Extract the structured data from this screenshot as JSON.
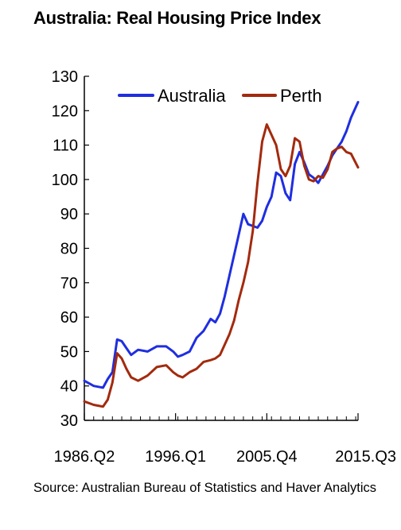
{
  "title": "Australia: Real Housing Price Index",
  "source": "Source: Australian Bureau of Statistics and Haver Analytics",
  "colors": {
    "australia": "#1f2ee0",
    "perth": "#a32a0e",
    "axis": "#000000"
  },
  "chart_data": {
    "type": "line",
    "title": "Australia: Real Housing Price Index",
    "xlabel": "",
    "ylabel": "",
    "ylim": [
      30,
      130
    ],
    "yticks": [
      30,
      40,
      50,
      60,
      70,
      80,
      90,
      100,
      110,
      120,
      130
    ],
    "xticks": [
      "1986.Q2",
      "1996.Q1",
      "2005.Q4",
      "2015.Q3"
    ],
    "xlim": [
      "1986.Q2",
      "2015.Q3"
    ],
    "grid": false,
    "legend": "top-left",
    "series": [
      {
        "name": "Australia",
        "color": "#1f2ee0",
        "x": [
          "1986.Q2",
          "1987.Q2",
          "1988.Q2",
          "1988.Q4",
          "1989.Q2",
          "1989.Q4",
          "1990.Q2",
          "1990.Q4",
          "1991.Q2",
          "1992.Q1",
          "1993.Q1",
          "1994.Q1",
          "1995.Q1",
          "1995.Q4",
          "1996.Q2",
          "1996.Q4",
          "1997.Q3",
          "1998.Q2",
          "1999.Q1",
          "1999.Q4",
          "2000.Q2",
          "2000.Q4",
          "2001.Q2",
          "2001.Q4",
          "2002.Q2",
          "2002.Q4",
          "2003.Q2",
          "2003.Q4",
          "2004.Q2",
          "2004.Q4",
          "2005.Q2",
          "2005.Q4",
          "2006.Q2",
          "2006.Q4",
          "2007.Q2",
          "2007.Q4",
          "2008.Q2",
          "2008.Q4",
          "2009.Q2",
          "2009.Q4",
          "2010.Q2",
          "2010.Q4",
          "2011.Q2",
          "2011.Q4",
          "2012.Q2",
          "2012.Q4",
          "2013.Q2",
          "2013.Q4",
          "2014.Q2",
          "2014.Q4",
          "2015.Q3"
        ],
        "values": [
          41.5,
          40,
          39.5,
          42,
          44,
          53.5,
          53,
          51,
          49,
          50.5,
          50,
          51.5,
          51.5,
          50,
          48.5,
          49,
          50,
          54,
          56,
          59.5,
          58.5,
          61,
          66,
          72,
          78,
          84,
          90,
          87,
          86.5,
          86,
          88,
          92,
          95,
          102,
          101,
          96,
          94,
          104.5,
          108,
          105,
          101.5,
          100.5,
          99,
          101.5,
          104,
          107,
          109,
          111,
          114,
          118,
          122.5
        ]
      },
      {
        "name": "Perth",
        "color": "#a32a0e",
        "x": [
          "1986.Q2",
          "1987.Q2",
          "1988.Q2",
          "1988.Q4",
          "1989.Q2",
          "1989.Q4",
          "1990.Q2",
          "1990.Q4",
          "1991.Q2",
          "1992.Q1",
          "1993.Q1",
          "1994.Q1",
          "1995.Q1",
          "1995.Q4",
          "1996.Q2",
          "1996.Q4",
          "1997.Q3",
          "1998.Q2",
          "1999.Q1",
          "1999.Q4",
          "2000.Q2",
          "2000.Q4",
          "2001.Q2",
          "2001.Q4",
          "2002.Q2",
          "2002.Q4",
          "2003.Q2",
          "2003.Q4",
          "2004.Q2",
          "2004.Q4",
          "2005.Q2",
          "2005.Q4",
          "2006.Q2",
          "2006.Q4",
          "2007.Q2",
          "2007.Q4",
          "2008.Q2",
          "2008.Q4",
          "2009.Q2",
          "2009.Q4",
          "2010.Q2",
          "2010.Q4",
          "2011.Q2",
          "2011.Q4",
          "2012.Q2",
          "2012.Q4",
          "2013.Q2",
          "2013.Q4",
          "2014.Q2",
          "2014.Q4",
          "2015.Q3"
        ],
        "values": [
          35.5,
          34.5,
          34,
          36,
          41,
          49.5,
          48,
          45,
          42.5,
          41.5,
          43,
          45.5,
          46,
          44,
          43,
          42.5,
          44,
          45,
          47,
          47.5,
          48,
          49,
          52,
          55,
          59,
          65,
          70,
          76,
          85,
          99,
          111,
          116,
          113,
          110,
          103,
          101,
          104,
          112,
          111,
          104,
          100,
          99.5,
          101,
          100.5,
          103,
          108,
          109,
          109.5,
          108,
          107.5,
          103.5
        ]
      }
    ]
  }
}
